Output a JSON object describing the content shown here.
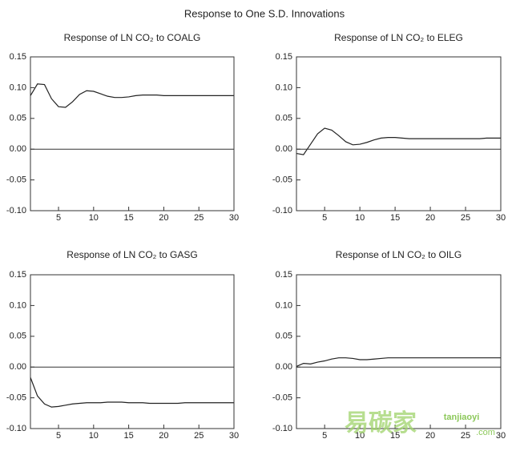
{
  "title": "Response to One S.D. Innovations",
  "chart_data": [
    {
      "type": "line",
      "title": "Response of LN CO₂ to COALG",
      "x": [
        1,
        2,
        3,
        4,
        5,
        6,
        7,
        8,
        9,
        10,
        11,
        12,
        13,
        14,
        15,
        16,
        17,
        18,
        19,
        20,
        21,
        22,
        23,
        24,
        25,
        26,
        27,
        28,
        29,
        30
      ],
      "values": [
        0.087,
        0.106,
        0.105,
        0.082,
        0.069,
        0.068,
        0.077,
        0.089,
        0.095,
        0.094,
        0.09,
        0.086,
        0.084,
        0.084,
        0.085,
        0.087,
        0.088,
        0.088,
        0.088,
        0.087,
        0.087,
        0.087,
        0.087,
        0.087,
        0.087,
        0.087,
        0.087,
        0.087,
        0.087,
        0.087
      ],
      "color": "#222222",
      "xlim": [
        1,
        30
      ],
      "xticks": [
        5,
        10,
        15,
        20,
        25,
        30
      ],
      "ylim": [
        -0.1,
        0.15
      ],
      "yticks": [
        0.15,
        {
          "value": 0.1,
          "label": "0.10"
        },
        0.05,
        {
          "value": 0,
          "label": "0.00"
        },
        -0.05,
        {
          "value": -0.1,
          "label": "-0.10"
        }
      ],
      "zero_line": true
    },
    {
      "type": "line",
      "title": "Response of LN CO₂ to ELEG",
      "x": [
        1,
        2,
        3,
        4,
        5,
        6,
        7,
        8,
        9,
        10,
        11,
        12,
        13,
        14,
        15,
        16,
        17,
        18,
        19,
        20,
        21,
        22,
        23,
        24,
        25,
        26,
        27,
        28,
        29,
        30
      ],
      "values": [
        -0.007,
        -0.009,
        0.008,
        0.025,
        0.034,
        0.031,
        0.022,
        0.012,
        0.007,
        0.008,
        0.011,
        0.015,
        0.018,
        0.019,
        0.019,
        0.018,
        0.017,
        0.017,
        0.017,
        0.017,
        0.017,
        0.017,
        0.017,
        0.017,
        0.017,
        0.017,
        0.017,
        0.018,
        0.018,
        0.018
      ],
      "color": "#222222",
      "xlim": [
        1,
        30
      ],
      "xticks": [
        5,
        10,
        15,
        20,
        25,
        30
      ],
      "ylim": [
        -0.1,
        0.15
      ],
      "yticks": [
        0.15,
        {
          "value": 0.1,
          "label": "0.10"
        },
        0.05,
        {
          "value": 0,
          "label": "0.00"
        },
        -0.05,
        {
          "value": -0.1,
          "label": "-0.10"
        }
      ],
      "zero_line": true
    },
    {
      "type": "line",
      "title": "Response of LN CO₂ to GASG",
      "x": [
        1,
        2,
        3,
        4,
        5,
        6,
        7,
        8,
        9,
        10,
        11,
        12,
        13,
        14,
        15,
        16,
        17,
        18,
        19,
        20,
        21,
        22,
        23,
        24,
        25,
        26,
        27,
        28,
        29,
        30
      ],
      "values": [
        -0.017,
        -0.047,
        -0.06,
        -0.065,
        -0.064,
        -0.062,
        -0.06,
        -0.059,
        -0.058,
        -0.058,
        -0.058,
        -0.057,
        -0.057,
        -0.057,
        -0.058,
        -0.058,
        -0.058,
        -0.059,
        -0.059,
        -0.059,
        -0.059,
        -0.059,
        -0.058,
        -0.058,
        -0.058,
        -0.058,
        -0.058,
        -0.058,
        -0.058,
        -0.058
      ],
      "color": "#222222",
      "xlim": [
        1,
        30
      ],
      "xticks": [
        5,
        10,
        15,
        20,
        25,
        30
      ],
      "ylim": [
        -0.1,
        0.15
      ],
      "yticks": [
        0.15,
        {
          "value": 0.1,
          "label": "0.10"
        },
        0.05,
        {
          "value": 0,
          "label": "0.00"
        },
        -0.05,
        {
          "value": -0.1,
          "label": "-0.10"
        }
      ],
      "zero_line": true
    },
    {
      "type": "line",
      "title": "Response of LN CO₂ to OILG",
      "x": [
        1,
        2,
        3,
        4,
        5,
        6,
        7,
        8,
        9,
        10,
        11,
        12,
        13,
        14,
        15,
        16,
        17,
        18,
        19,
        20,
        21,
        22,
        23,
        24,
        25,
        26,
        27,
        28,
        29,
        30
      ],
      "values": [
        0.001,
        0.006,
        0.005,
        0.008,
        0.01,
        0.013,
        0.015,
        0.015,
        0.014,
        0.012,
        0.012,
        0.013,
        0.014,
        0.015,
        0.015,
        0.015,
        0.015,
        0.015,
        0.015,
        0.015,
        0.015,
        0.015,
        0.015,
        0.015,
        0.015,
        0.015,
        0.015,
        0.015,
        0.015,
        0.015
      ],
      "color": "#222222",
      "xlim": [
        1,
        30
      ],
      "xticks": [
        5,
        10,
        15,
        20,
        25,
        30
      ],
      "ylim": [
        -0.1,
        0.15
      ],
      "yticks": [
        0.15,
        {
          "value": 0.1,
          "label": "0.10"
        },
        0.05,
        {
          "value": 0,
          "label": "0.00"
        },
        -0.05,
        {
          "value": -0.1,
          "label": "-0.10"
        }
      ],
      "zero_line": true
    }
  ],
  "watermark": {
    "logo": "易碳家",
    "site": "tanjiaoyi",
    "domain": ".com"
  }
}
